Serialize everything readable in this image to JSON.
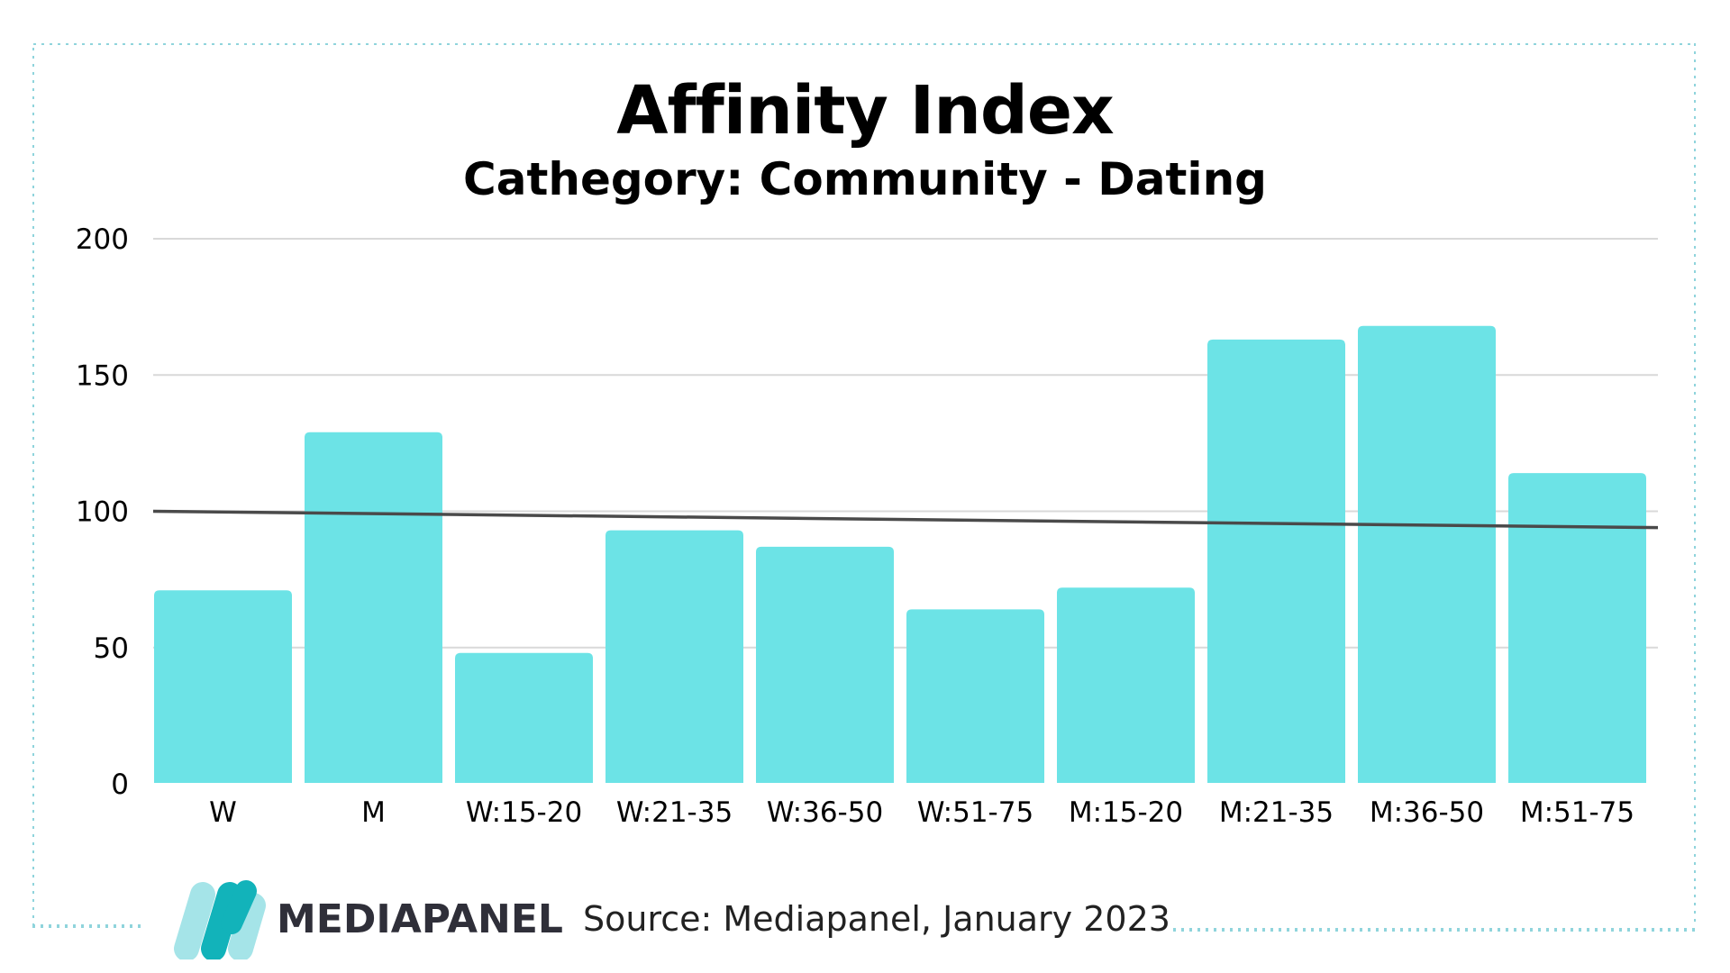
{
  "chart_data": {
    "type": "bar",
    "title": "Affinity Index",
    "subtitle": "Cathegory: Community - Dating",
    "categories": [
      "W",
      "M",
      "W:15-20",
      "W:21-35",
      "W:36-50",
      "W:51-75",
      "M:15-20",
      "M:21-35",
      "M:36-50",
      "M:51-75"
    ],
    "values": [
      71,
      129,
      48,
      93,
      87,
      64,
      72,
      163,
      168,
      114
    ],
    "ylim": [
      0,
      200
    ],
    "yticks": [
      0,
      50,
      100,
      150,
      200
    ],
    "grid": true,
    "trendline": {
      "start": 100,
      "end": 94
    },
    "colors": {
      "bar": "#6ce3e6",
      "trend": "#4a4a4a",
      "grid": "#d9d9d9",
      "frame": "#8fd4dc"
    }
  },
  "footer": {
    "brand": "MEDIAPANEL",
    "source": "Source: Mediapanel, January 2023"
  }
}
